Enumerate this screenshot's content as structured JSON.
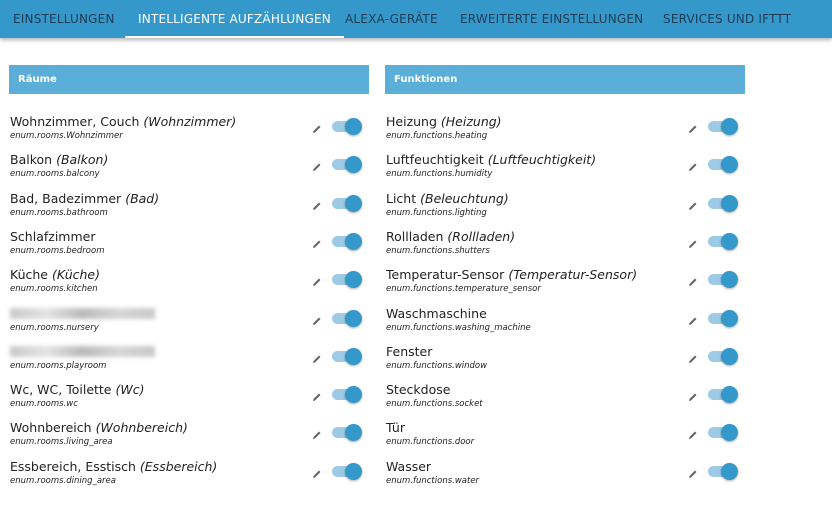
{
  "tabs": [
    {
      "label": "EINSTELLUNGEN",
      "active": false
    },
    {
      "label": "INTELLIGENTE AUFZÄHLUNGEN",
      "active": true
    },
    {
      "label": "ALEXA-GERÄTE",
      "active": false
    },
    {
      "label": "ERWEITERTE EINSTELLUNGEN",
      "active": false
    },
    {
      "label": "SERVICES UND IFTTT",
      "active": false
    }
  ],
  "rooms": {
    "title": "Räume",
    "items": [
      {
        "name": "Wohnzimmer, Couch",
        "alias": "(Wohnzimmer)",
        "id": "enum.rooms.Wohnzimmer",
        "enabled": true
      },
      {
        "name": "Balkon",
        "alias": "(Balkon)",
        "id": "enum.rooms.balcony",
        "enabled": true
      },
      {
        "name": "Bad, Badezimmer",
        "alias": "(Bad)",
        "id": "enum.rooms.bathroom",
        "enabled": true
      },
      {
        "name": "Schlafzimmer",
        "alias": "",
        "id": "enum.rooms.bedroom",
        "enabled": true
      },
      {
        "name": "Küche",
        "alias": "(Küche)",
        "id": "enum.rooms.kitchen",
        "enabled": true
      },
      {
        "name": "",
        "alias": "",
        "id": "enum.rooms.nursery",
        "enabled": true,
        "blurred": true
      },
      {
        "name": "",
        "alias": "",
        "id": "enum.rooms.playroom",
        "enabled": true,
        "blurred": true
      },
      {
        "name": "Wc, WC, Toilette",
        "alias": "(Wc)",
        "id": "enum.rooms.wc",
        "enabled": true
      },
      {
        "name": "Wohnbereich",
        "alias": "(Wohnbereich)",
        "id": "enum.rooms.living_area",
        "enabled": true
      },
      {
        "name": "Essbereich, Esstisch",
        "alias": "(Essbereich)",
        "id": "enum.rooms.dining_area",
        "enabled": true
      }
    ]
  },
  "functions": {
    "title": "Funktionen",
    "items": [
      {
        "name": "Heizung",
        "alias": "(Heizung)",
        "id": "enum.functions.heating",
        "enabled": true
      },
      {
        "name": "Luftfeuchtigkeit",
        "alias": "(Luftfeuchtigkeit)",
        "id": "enum.functions.humidity",
        "enabled": true
      },
      {
        "name": "Licht",
        "alias": "(Beleuchtung)",
        "id": "enum.functions.lighting",
        "enabled": true
      },
      {
        "name": "Rollladen",
        "alias": "(Rollladen)",
        "id": "enum.functions.shutters",
        "enabled": true
      },
      {
        "name": "Temperatur-Sensor",
        "alias": "(Temperatur-Sensor)",
        "id": "enum.functions.temperature_sensor",
        "enabled": true
      },
      {
        "name": "Waschmaschine",
        "alias": "",
        "id": "enum.functions.washing_machine",
        "enabled": true
      },
      {
        "name": "Fenster",
        "alias": "",
        "id": "enum.functions.window",
        "enabled": true
      },
      {
        "name": "Steckdose",
        "alias": "",
        "id": "enum.functions.socket",
        "enabled": true
      },
      {
        "name": "Tür",
        "alias": "",
        "id": "enum.functions.door",
        "enabled": true
      },
      {
        "name": "Wasser",
        "alias": "",
        "id": "enum.functions.water",
        "enabled": true
      }
    ]
  },
  "colors": {
    "primary": "#3598ca",
    "header": "#5aaed8",
    "track": "#9dcbe6"
  }
}
